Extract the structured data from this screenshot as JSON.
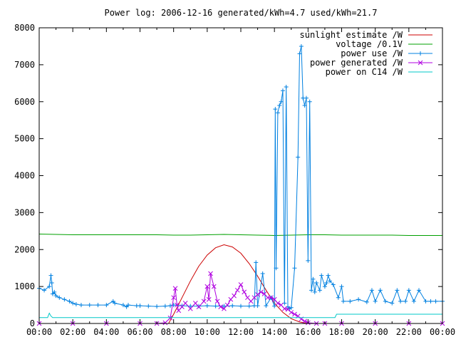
{
  "chart_data": {
    "type": "line",
    "title": "Power log: 2006-12-16 generated/kWh=4.7 used/kWh=21.7",
    "xlabel": "",
    "ylabel": "",
    "xlim": [
      0,
      24
    ],
    "ylim": [
      0,
      8000
    ],
    "grid": false,
    "legend_position": "top-right",
    "x_tick_labels": [
      "00:00",
      "02:00",
      "04:00",
      "06:00",
      "08:00",
      "10:00",
      "12:00",
      "14:00",
      "16:00",
      "18:00",
      "20:00",
      "22:00",
      "00:00"
    ],
    "y_tick_labels": [
      "0",
      "1000",
      "2000",
      "3000",
      "4000",
      "5000",
      "6000",
      "7000",
      "8000"
    ],
    "y_ticks": [
      0,
      1000,
      2000,
      3000,
      4000,
      5000,
      6000,
      7000,
      8000
    ],
    "series": [
      {
        "name": "sunlight estimate /W",
        "color": "#cc0000",
        "marker": "none",
        "x": [
          7.7,
          8.0,
          8.5,
          9.0,
          9.5,
          10.0,
          10.5,
          11.0,
          11.5,
          12.0,
          12.5,
          13.0,
          13.5,
          14.0,
          14.5,
          15.0,
          15.5,
          16.0,
          16.5
        ],
        "y": [
          0,
          250,
          700,
          1150,
          1550,
          1850,
          2050,
          2130,
          2070,
          1900,
          1620,
          1280,
          900,
          550,
          300,
          130,
          40,
          0,
          0
        ]
      },
      {
        "name": "voltage /0.1V",
        "color": "#00a000",
        "marker": "none",
        "x": [
          0,
          1,
          2,
          3,
          4,
          5,
          6,
          7,
          8,
          9,
          10,
          11,
          12,
          13,
          14,
          15,
          16,
          17,
          18,
          19,
          20,
          21,
          22,
          23,
          24
        ],
        "y": [
          2420,
          2410,
          2400,
          2400,
          2400,
          2400,
          2400,
          2400,
          2390,
          2390,
          2400,
          2410,
          2400,
          2390,
          2380,
          2390,
          2400,
          2400,
          2390,
          2390,
          2390,
          2390,
          2380,
          2380,
          2380
        ]
      },
      {
        "name": "power use /W",
        "color": "#0080e0",
        "marker": "plus",
        "x": [
          0,
          0.3,
          0.6,
          0.7,
          0.75,
          0.8,
          0.9,
          1.0,
          1.2,
          1.5,
          1.8,
          2.0,
          2.2,
          2.5,
          3.0,
          3.5,
          4.0,
          4.4,
          4.5,
          5.0,
          5.2,
          5.3,
          5.8,
          6.0,
          6.5,
          7.0,
          7.5,
          7.8,
          8.0,
          8.5,
          9.0,
          9.5,
          10.0,
          10.5,
          11.0,
          11.5,
          12.0,
          12.5,
          12.8,
          12.9,
          13.0,
          13.3,
          13.5,
          13.8,
          14.0,
          14.05,
          14.1,
          14.2,
          14.3,
          14.4,
          14.5,
          14.6,
          14.7,
          14.8,
          14.9,
          15.0,
          15.2,
          15.4,
          15.5,
          15.6,
          15.7,
          15.8,
          15.9,
          16.0,
          16.1,
          16.2,
          16.3,
          16.4,
          16.5,
          16.7,
          16.8,
          17.0,
          17.1,
          17.2,
          17.3,
          17.5,
          17.8,
          18.0,
          18.1,
          18.5,
          19.0,
          19.5,
          19.8,
          20.0,
          20.3,
          20.6,
          21.0,
          21.3,
          21.5,
          21.8,
          22.0,
          22.3,
          22.6,
          23.0,
          23.3,
          23.6,
          24.0
        ],
        "y": [
          950,
          900,
          1000,
          1300,
          1100,
          800,
          850,
          750,
          700,
          650,
          600,
          550,
          520,
          500,
          500,
          500,
          500,
          600,
          550,
          500,
          450,
          500,
          480,
          480,
          470,
          460,
          470,
          480,
          500,
          480,
          470,
          470,
          480,
          470,
          470,
          480,
          470,
          470,
          480,
          1650,
          480,
          1350,
          480,
          700,
          470,
          5800,
          1500,
          5700,
          5900,
          6000,
          6300,
          550,
          6400,
          450,
          400,
          430,
          1500,
          4500,
          7300,
          7500,
          6100,
          5900,
          6100,
          1700,
          6000,
          900,
          1200,
          850,
          1100,
          900,
          1300,
          1000,
          1100,
          1300,
          1150,
          1050,
          700,
          1000,
          600,
          600,
          650,
          580,
          900,
          600,
          900,
          600,
          550,
          900,
          600,
          600,
          900,
          600,
          900,
          600,
          600,
          600,
          600
        ]
      },
      {
        "name": "power generated /W",
        "color": "#b000e0",
        "marker": "cross",
        "x": [
          0,
          2,
          4,
          6,
          7,
          7.5,
          7.8,
          8.0,
          8.1,
          8.2,
          8.3,
          8.5,
          8.7,
          9.0,
          9.3,
          9.5,
          9.8,
          10.0,
          10.1,
          10.2,
          10.4,
          10.6,
          10.8,
          11.0,
          11.2,
          11.4,
          11.6,
          11.8,
          12.0,
          12.2,
          12.4,
          12.6,
          12.8,
          13.0,
          13.2,
          13.4,
          13.6,
          13.8,
          14.0,
          14.2,
          14.4,
          14.6,
          14.8,
          15.0,
          15.2,
          15.4,
          15.6,
          15.8,
          16.0,
          16.5,
          17.0,
          18,
          20,
          22,
          24
        ],
        "y": [
          0,
          0,
          0,
          0,
          0,
          20,
          150,
          700,
          950,
          500,
          350,
          450,
          550,
          400,
          550,
          450,
          600,
          1000,
          650,
          1350,
          1000,
          600,
          450,
          400,
          500,
          650,
          750,
          900,
          1050,
          850,
          700,
          600,
          700,
          780,
          850,
          800,
          700,
          700,
          650,
          550,
          500,
          400,
          380,
          300,
          250,
          200,
          120,
          60,
          20,
          0,
          0,
          0,
          0,
          0,
          0
        ]
      },
      {
        "name": "power on C14 /W",
        "color": "#00c8c8",
        "marker": "none",
        "x": [
          0,
          0.5,
          0.6,
          0.7,
          0.8,
          1.0,
          2,
          4,
          6,
          8,
          10,
          12,
          14,
          16,
          17.0,
          17.5,
          17.6,
          17.7,
          18.0,
          20,
          22,
          24
        ],
        "y": [
          160,
          160,
          280,
          200,
          160,
          160,
          160,
          160,
          160,
          160,
          160,
          160,
          160,
          160,
          160,
          160,
          160,
          250,
          250,
          250,
          250,
          250
        ]
      }
    ]
  }
}
